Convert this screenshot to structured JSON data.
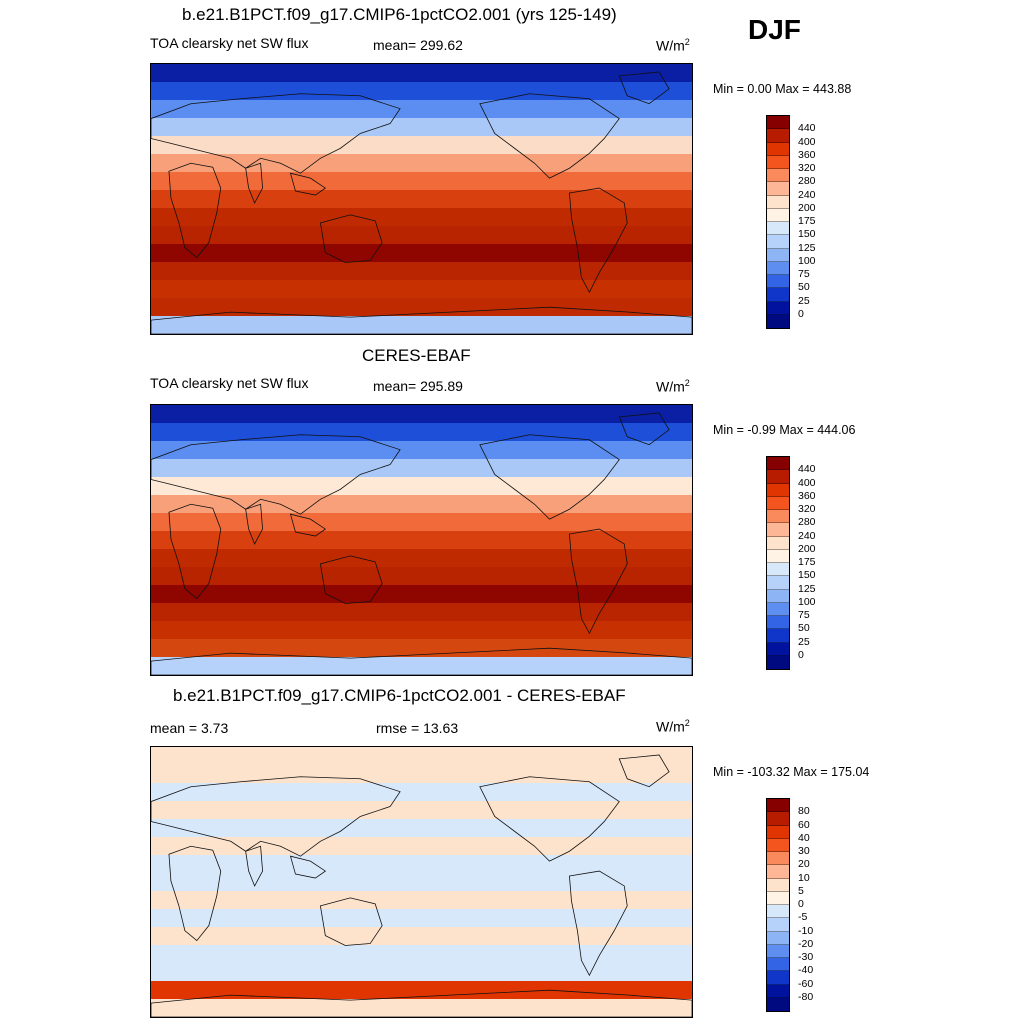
{
  "season": "DJF",
  "panels": [
    {
      "title": "b.e21.B1PCT.f09_g17.CMIP6-1pctCO2.001 (yrs 125-149)",
      "left_label": "TOA clearsky net SW flux",
      "center_label": "mean= 299.62",
      "units": "W/m",
      "units_exp": "2",
      "minmax": "Min =   0.00 Max = 443.88",
      "colorbar": {
        "labels": [
          "440",
          "400",
          "360",
          "320",
          "280",
          "240",
          "200",
          "175",
          "150",
          "125",
          "100",
          "75",
          "50",
          "25",
          "0"
        ],
        "colors": [
          "#870000",
          "#b81c00",
          "#e03500",
          "#f4551e",
          "#fa8a5c",
          "#fdb796",
          "#fde2cc",
          "#fff3e6",
          "#d8e8fb",
          "#b6d2fa",
          "#8db5f6",
          "#5e8ff0",
          "#3364e6",
          "#1035c9",
          "#00129e",
          "#000a80"
        ]
      },
      "map_bands": [
        "#0a1fa3",
        "#1d4fd8",
        "#5b8ef0",
        "#a9c8f7",
        "#fbdcc6",
        "#f7a07a",
        "#f06a3a",
        "#d8400f",
        "#c02a00",
        "#b82300",
        "#8f0500",
        "#b92500",
        "#c73000",
        "#c02a00",
        "#a9c8f7"
      ]
    },
    {
      "title": "CERES-EBAF",
      "left_label": "TOA clearsky net SW flux",
      "center_label": "mean= 295.89",
      "units": "W/m",
      "units_exp": "2",
      "minmax": "Min =  -0.99 Max = 444.06",
      "colorbar": {
        "labels": [
          "440",
          "400",
          "360",
          "320",
          "280",
          "240",
          "200",
          "175",
          "150",
          "125",
          "100",
          "75",
          "50",
          "25",
          "0"
        ],
        "colors": [
          "#870000",
          "#b81c00",
          "#e03500",
          "#f4551e",
          "#fa8a5c",
          "#fdb796",
          "#fde2cc",
          "#fff3e6",
          "#d8e8fb",
          "#b6d2fa",
          "#8db5f6",
          "#5e8ff0",
          "#3364e6",
          "#1035c9",
          "#00129e",
          "#000a80"
        ]
      },
      "map_bands": [
        "#0a1fa3",
        "#1d4fd8",
        "#5b8ef0",
        "#a9c8f7",
        "#fde9d6",
        "#f7a07a",
        "#f06a3a",
        "#d8400f",
        "#c02a00",
        "#b82300",
        "#8f0500",
        "#b92500",
        "#c73000",
        "#d4480f",
        "#b6d2fa"
      ]
    },
    {
      "title": "b.e21.B1PCT.f09_g17.CMIP6-1pctCO2.001 - CERES-EBAF",
      "left_label": "mean =   3.73",
      "center_label": "rmse =  13.63",
      "units": "W/m",
      "units_exp": "2",
      "minmax": "Min = -103.32 Max = 175.04",
      "colorbar": {
        "labels": [
          "80",
          "60",
          "40",
          "30",
          "20",
          "10",
          "5",
          "0",
          "-5",
          "-10",
          "-20",
          "-30",
          "-40",
          "-60",
          "-80"
        ],
        "colors": [
          "#870000",
          "#b81c00",
          "#e03500",
          "#f4551e",
          "#fa8a5c",
          "#fdb796",
          "#fde2cc",
          "#fff3e6",
          "#d8e8fb",
          "#b6d2fa",
          "#8db5f6",
          "#5e8ff0",
          "#3364e6",
          "#1035c9",
          "#00129e",
          "#000a80"
        ]
      },
      "map_bands": [
        "#fde2cc",
        "#fde2cc",
        "#d8e8fb",
        "#fde2cc",
        "#d8e8fb",
        "#fde2cc",
        "#d8e8fb",
        "#d8e8fb",
        "#fde2cc",
        "#d8e8fb",
        "#fde2cc",
        "#d8e8fb",
        "#d8e8fb",
        "#e03500",
        "#fde2cc"
      ]
    }
  ]
}
